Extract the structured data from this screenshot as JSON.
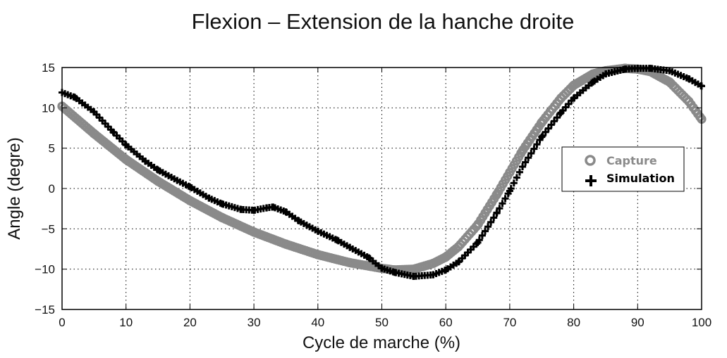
{
  "chart_data": {
    "type": "line",
    "title": "Flexion – Extension de la hanche droite",
    "xlabel": "Cycle de marche (%)",
    "ylabel": "Angle (degre)",
    "xlim": [
      0,
      100
    ],
    "ylim": [
      -15,
      15
    ],
    "xticks": [
      0,
      10,
      20,
      30,
      40,
      50,
      60,
      70,
      80,
      90,
      100
    ],
    "yticks": [
      15,
      10,
      5,
      0,
      -5,
      -10,
      -15
    ],
    "ytick_labels": [
      "15",
      "10",
      "5",
      "0",
      "−5",
      "−10",
      "−15"
    ],
    "grid": true,
    "legend_position": "right",
    "series": [
      {
        "name": "Capture",
        "color": "#8a8a8a",
        "marker": "circle",
        "x": [
          0,
          5,
          10,
          15,
          20,
          25,
          30,
          35,
          40,
          45,
          50,
          52,
          55,
          58,
          60,
          62,
          65,
          68,
          70,
          72,
          75,
          78,
          80,
          83,
          85,
          88,
          90,
          92,
          95,
          98,
          100
        ],
        "y": [
          10.2,
          6.8,
          3.6,
          0.9,
          -1.5,
          -3.6,
          -5.4,
          -6.9,
          -8.2,
          -9.2,
          -9.9,
          -10.1,
          -10.0,
          -9.3,
          -8.5,
          -7.2,
          -4.5,
          -0.7,
          2.0,
          4.7,
          8.2,
          11.2,
          12.8,
          14.2,
          14.6,
          14.9,
          14.8,
          14.5,
          13.2,
          10.8,
          8.6
        ]
      },
      {
        "name": "Simulation",
        "color": "#000000",
        "marker": "plus",
        "x": [
          0,
          2,
          5,
          8,
          10,
          13,
          15,
          18,
          20,
          23,
          25,
          28,
          30,
          32,
          33,
          35,
          37,
          40,
          43,
          45,
          48,
          50,
          52,
          55,
          58,
          60,
          62,
          65,
          68,
          70,
          72,
          75,
          78,
          80,
          83,
          85,
          88,
          90,
          92,
          95,
          98,
          100
        ],
        "y": [
          11.9,
          11.3,
          9.5,
          7.0,
          5.4,
          3.4,
          2.3,
          1.0,
          0.2,
          -1.2,
          -1.9,
          -2.6,
          -2.7,
          -2.4,
          -2.3,
          -2.9,
          -4.0,
          -5.3,
          -6.4,
          -7.3,
          -8.6,
          -9.9,
          -10.4,
          -10.9,
          -10.7,
          -10.1,
          -9.1,
          -6.7,
          -3.0,
          -0.3,
          2.7,
          6.4,
          9.4,
          11.2,
          13.2,
          14.2,
          14.8,
          14.9,
          14.9,
          14.6,
          13.6,
          12.7
        ]
      }
    ]
  }
}
